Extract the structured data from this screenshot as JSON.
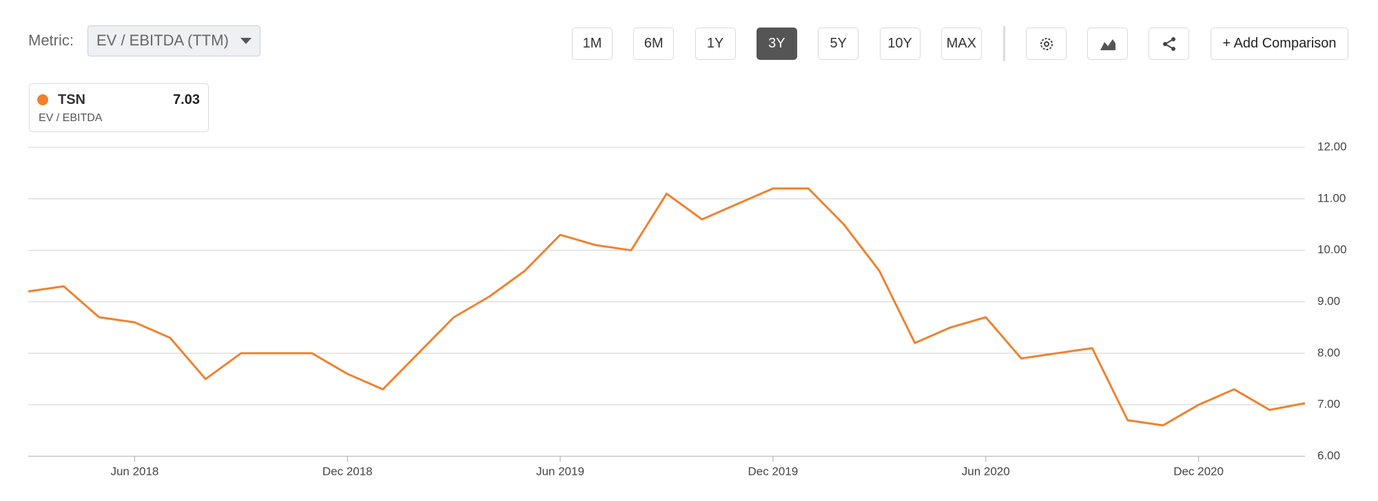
{
  "toolbar": {
    "metric_label": "Metric:",
    "metric": "EV / EBITDA (TTM)",
    "ranges": [
      "1M",
      "6M",
      "1Y",
      "3Y",
      "5Y",
      "10Y",
      "MAX"
    ],
    "active_range": 3,
    "add_button": "+ Add Comparison"
  },
  "chart_data": {
    "type": "line",
    "y_label": "EV / EBITDA",
    "x": [
      "2018-03",
      "2018-04",
      "2018-05",
      "2018-06",
      "2018-07",
      "2018-08",
      "2018-09",
      "2018-10",
      "2018-11",
      "2018-12",
      "2019-01",
      "2019-02",
      "2019-03",
      "2019-04",
      "2019-05",
      "2019-06",
      "2019-07",
      "2019-08",
      "2019-09",
      "2019-10",
      "2019-11",
      "2019-12",
      "2020-01",
      "2020-02",
      "2020-03",
      "2020-04",
      "2020-05",
      "2020-06",
      "2020-07",
      "2020-08",
      "2020-09",
      "2020-10",
      "2020-11",
      "2020-12",
      "2021-01",
      "2021-02",
      "2021-03"
    ],
    "series": [
      {
        "name": "TSN",
        "color": "#f0812d",
        "latest": 7.03,
        "values": [
          9.2,
          9.3,
          8.7,
          8.6,
          8.3,
          7.5,
          8.0,
          8.0,
          8.0,
          7.6,
          7.3,
          8.0,
          8.7,
          9.1,
          9.6,
          10.3,
          10.1,
          10.0,
          11.1,
          10.6,
          10.9,
          11.2,
          11.2,
          10.5,
          9.6,
          8.2,
          8.5,
          8.7,
          7.9,
          8.0,
          8.1,
          6.7,
          6.6,
          7.0,
          7.3,
          6.9,
          7.03
        ]
      }
    ],
    "xlim": [
      "2018-03",
      "2021-03"
    ],
    "xticks": [
      {
        "value": "2018-06",
        "label": "Jun 2018"
      },
      {
        "value": "2018-12",
        "label": "Dec 2018"
      },
      {
        "value": "2019-06",
        "label": "Jun 2019"
      },
      {
        "value": "2019-12",
        "label": "Dec 2019"
      },
      {
        "value": "2020-06",
        "label": "Jun 2020"
      },
      {
        "value": "2020-12",
        "label": "Dec 2020"
      }
    ],
    "ylim": [
      6,
      12
    ],
    "yticks": [
      {
        "value": 6,
        "label": "6.00"
      },
      {
        "value": 7,
        "label": "7.00"
      },
      {
        "value": 8,
        "label": "8.00"
      },
      {
        "value": 9,
        "label": "9.00"
      },
      {
        "value": 10,
        "label": "10.00"
      },
      {
        "value": 11,
        "label": "11.00"
      },
      {
        "value": 12,
        "label": "12.00"
      }
    ],
    "grid": true
  }
}
